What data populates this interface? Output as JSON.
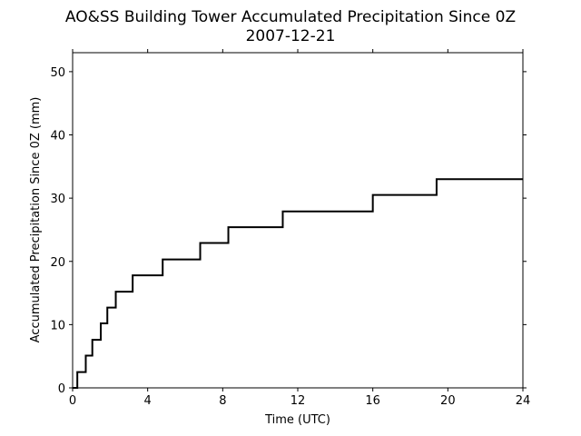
{
  "chart_data": {
    "type": "line",
    "title": "AO&SS Building Tower Accumulated Precipitation Since 0Z",
    "subtitle": "2007-12-21",
    "xlabel": "Time (UTC)",
    "ylabel": "Accumulated Precipitation Since 0Z (mm)",
    "xlim": [
      0,
      24
    ],
    "ylim": [
      0,
      53
    ],
    "xticks": [
      0,
      4,
      8,
      12,
      16,
      20,
      24
    ],
    "yticks": [
      0,
      10,
      20,
      30,
      40,
      50
    ],
    "grid": false,
    "step": true,
    "color": "#000000",
    "series": [
      {
        "x": [
          0,
          0.25,
          0.25,
          0.7,
          0.7,
          1.05,
          1.05,
          1.5,
          1.5,
          1.85,
          1.85,
          2.3,
          2.3,
          3.2,
          3.2,
          4.8,
          4.8,
          6.8,
          6.8,
          8.3,
          8.3,
          11.2,
          11.2,
          16.0,
          16.0,
          19.4,
          19.4,
          24
        ],
        "y": [
          0,
          0,
          2.5,
          2.5,
          5.1,
          5.1,
          7.6,
          7.6,
          10.2,
          10.2,
          12.7,
          12.7,
          15.2,
          15.2,
          17.8,
          17.8,
          20.3,
          20.3,
          22.9,
          22.9,
          25.4,
          25.4,
          27.9,
          27.9,
          30.5,
          30.5,
          33.0,
          33.0
        ]
      }
    ]
  }
}
